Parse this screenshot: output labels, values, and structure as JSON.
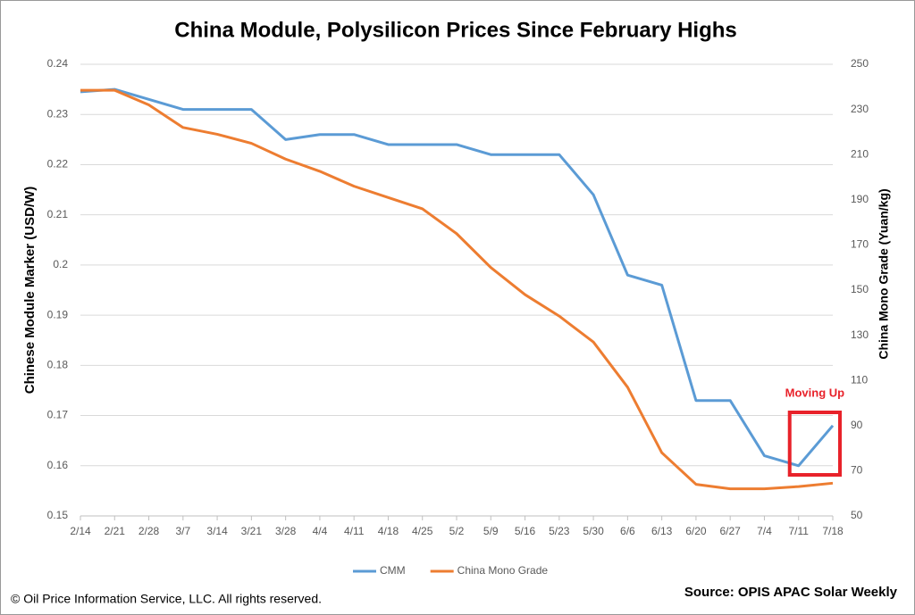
{
  "chart_data": {
    "type": "line",
    "title": "China Module, Polysilicon Prices Since February Highs",
    "categories": [
      "2/14",
      "2/21",
      "2/28",
      "3/7",
      "3/14",
      "3/21",
      "3/28",
      "4/4",
      "4/11",
      "4/18",
      "4/25",
      "5/2",
      "5/9",
      "5/16",
      "5/23",
      "5/30",
      "6/6",
      "6/13",
      "6/20",
      "6/27",
      "7/4",
      "7/11",
      "7/18"
    ],
    "series": [
      {
        "name": "CMM",
        "color": "#5b9bd5",
        "values": [
          0.2345,
          0.235,
          0.233,
          0.231,
          0.231,
          0.231,
          0.225,
          0.226,
          0.226,
          0.224,
          0.224,
          0.224,
          0.222,
          0.222,
          0.222,
          0.214,
          0.198,
          0.196,
          0.173,
          0.173,
          0.162,
          0.16,
          0.168
        ]
      },
      {
        "name": "China Mono Grade",
        "color": "#ed7d31",
        "axis": "y2",
        "values": [
          238.5,
          238.5,
          232,
          222,
          219,
          215,
          208,
          202.6,
          196,
          191,
          186,
          175,
          160,
          148,
          138.5,
          127,
          107,
          78,
          64,
          62,
          62,
          63,
          64.5
        ]
      }
    ],
    "ylabel": "Chinese Module Marker (USD/W)",
    "y2label": "China Mono Grade (Yuan/kg)",
    "ylim": [
      0.15,
      0.24
    ],
    "yticks": [
      0.15,
      0.16,
      0.17,
      0.18,
      0.19,
      0.2,
      0.21,
      0.22,
      0.23,
      0.24
    ],
    "y2lim": [
      50,
      250
    ],
    "y2ticks": [
      50,
      70,
      90,
      110,
      130,
      150,
      170,
      190,
      210,
      230,
      250
    ],
    "grid": true,
    "legend": "bottom",
    "annotation": "Moving Up",
    "copyright": "© Oil Price Information Service, LLC.  All rights reserved.",
    "source": "Source: OPIS APAC Solar Weekly"
  }
}
